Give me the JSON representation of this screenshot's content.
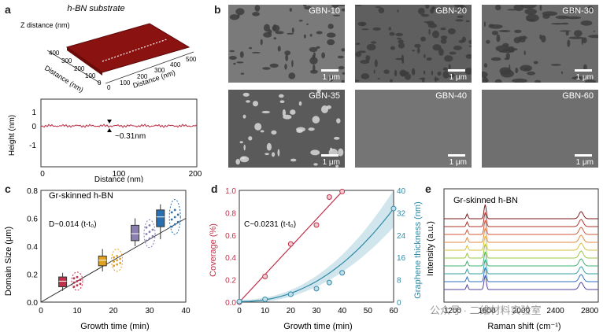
{
  "panel_labels": {
    "a": "a",
    "b": "b",
    "c": "c",
    "d": "d",
    "e": "e"
  },
  "panel_a": {
    "title": "h-BN substrate",
    "axis_z": "Z distance (nm)",
    "axis_distance_left": "Distance (nm)",
    "axis_distance_right": "Distance (nm)",
    "left_ticks": [
      "400",
      "300",
      "200",
      "100",
      "0"
    ],
    "right_ticks": [
      "0",
      "100",
      "200",
      "300",
      "400",
      "500"
    ],
    "profile": {
      "xlabel": "Distance (nm)",
      "ylabel": "Height (nm)",
      "xticks": [
        "0",
        "100",
        "200"
      ],
      "yticks": [
        "1",
        "0",
        "-1"
      ],
      "annotation": "~0.31nm"
    }
  },
  "panel_b": {
    "images": [
      {
        "label": "GBN-10",
        "scale": "1 μm",
        "color": "#7a7a7a"
      },
      {
        "label": "GBN-20",
        "scale": "1 μm",
        "color": "#5f5f5f"
      },
      {
        "label": "GBN-30",
        "scale": "1 μm",
        "color": "#6b6b6b"
      },
      {
        "label": "GBN-35",
        "scale": "1 μm",
        "color": "#5a5a5a"
      },
      {
        "label": "GBN-40",
        "scale": "1 μm",
        "color": "#757575"
      },
      {
        "label": "GBN-60",
        "scale": "1 μm",
        "color": "#6f6f6f"
      }
    ]
  },
  "chart_data": [
    {
      "panel": "c",
      "type": "box",
      "xlabel": "Growth time (min)",
      "ylabel": "Domain Size (μm)",
      "legend_text": "Gr-skinned h-BN",
      "fit_label": "D~0.014 (t-t₀)",
      "xlim": [
        0,
        40
      ],
      "ylim": [
        0.0,
        0.8
      ],
      "xticks": [
        "0",
        "10",
        "20",
        "30",
        "40"
      ],
      "yticks": [
        "0.0",
        "0.2",
        "0.4",
        "0.6",
        "0.8"
      ],
      "boxes": [
        {
          "x": 6,
          "median": 0.15,
          "q1": 0.11,
          "q3": 0.18,
          "min": 0.08,
          "max": 0.21,
          "color": "#c0304a"
        },
        {
          "x": 17,
          "median": 0.3,
          "q1": 0.26,
          "q3": 0.33,
          "min": 0.22,
          "max": 0.38,
          "color": "#e0a020"
        },
        {
          "x": 26,
          "median": 0.49,
          "q1": 0.44,
          "q3": 0.55,
          "min": 0.4,
          "max": 0.6,
          "color": "#8a7fb0"
        },
        {
          "x": 33,
          "median": 0.61,
          "q1": 0.54,
          "q3": 0.66,
          "min": 0.45,
          "max": 0.7,
          "color": "#2a6fb0"
        }
      ],
      "fit_line": {
        "x": [
          0,
          40
        ],
        "y": [
          0.0,
          0.6
        ]
      }
    },
    {
      "panel": "d",
      "type": "scatter",
      "xlabel": "Growth time (min)",
      "ylabel": "Coverage (%)",
      "y2label": "Graphene thickness (nm)",
      "fit_label": "C~0.0231 (t-t₀)",
      "xlim": [
        0,
        60
      ],
      "ylim": [
        0.0,
        1.0
      ],
      "y2lim": [
        0,
        40
      ],
      "xticks": [
        "0",
        "10",
        "20",
        "30",
        "40",
        "50",
        "60"
      ],
      "yticks": [
        "0.0",
        "0.2",
        "0.4",
        "0.6",
        "0.8",
        "1.0"
      ],
      "y2ticks": [
        "0",
        "8",
        "16",
        "24",
        "32",
        "40"
      ],
      "series": [
        {
          "name": "Coverage",
          "color": "#c0304a",
          "axis": "left",
          "x": [
            0,
            10,
            20,
            30,
            35,
            40
          ],
          "y": [
            0.0,
            0.23,
            0.52,
            0.69,
            0.94,
            0.99
          ]
        },
        {
          "name": "Graphene thickness",
          "color": "#2f8aa8",
          "axis": "right",
          "x": [
            0,
            10,
            20,
            30,
            35,
            40,
            60
          ],
          "y": [
            0.2,
            1.0,
            2.8,
            4.8,
            7.0,
            10.5,
            33.5
          ]
        }
      ]
    },
    {
      "panel": "e",
      "type": "line",
      "xlabel": "Raman shift (cm⁻¹)",
      "ylabel": "Intensity (a.u.)",
      "legend_text": "Gr-skinned h-BN",
      "xlim": [
        1100,
        2900
      ],
      "xticks": [
        "1200",
        "1600",
        "2000",
        "2400",
        "2800"
      ],
      "peaks": [
        1370,
        1580,
        2700
      ],
      "series_colors": [
        "#7a1a1a",
        "#b0302a",
        "#d05a3a",
        "#e08a40",
        "#d8c040",
        "#9ac840",
        "#40b070",
        "#30a0a0",
        "#3070c0",
        "#5040a0"
      ]
    }
  ],
  "watermark": "公众号 · 二维材料实验室"
}
